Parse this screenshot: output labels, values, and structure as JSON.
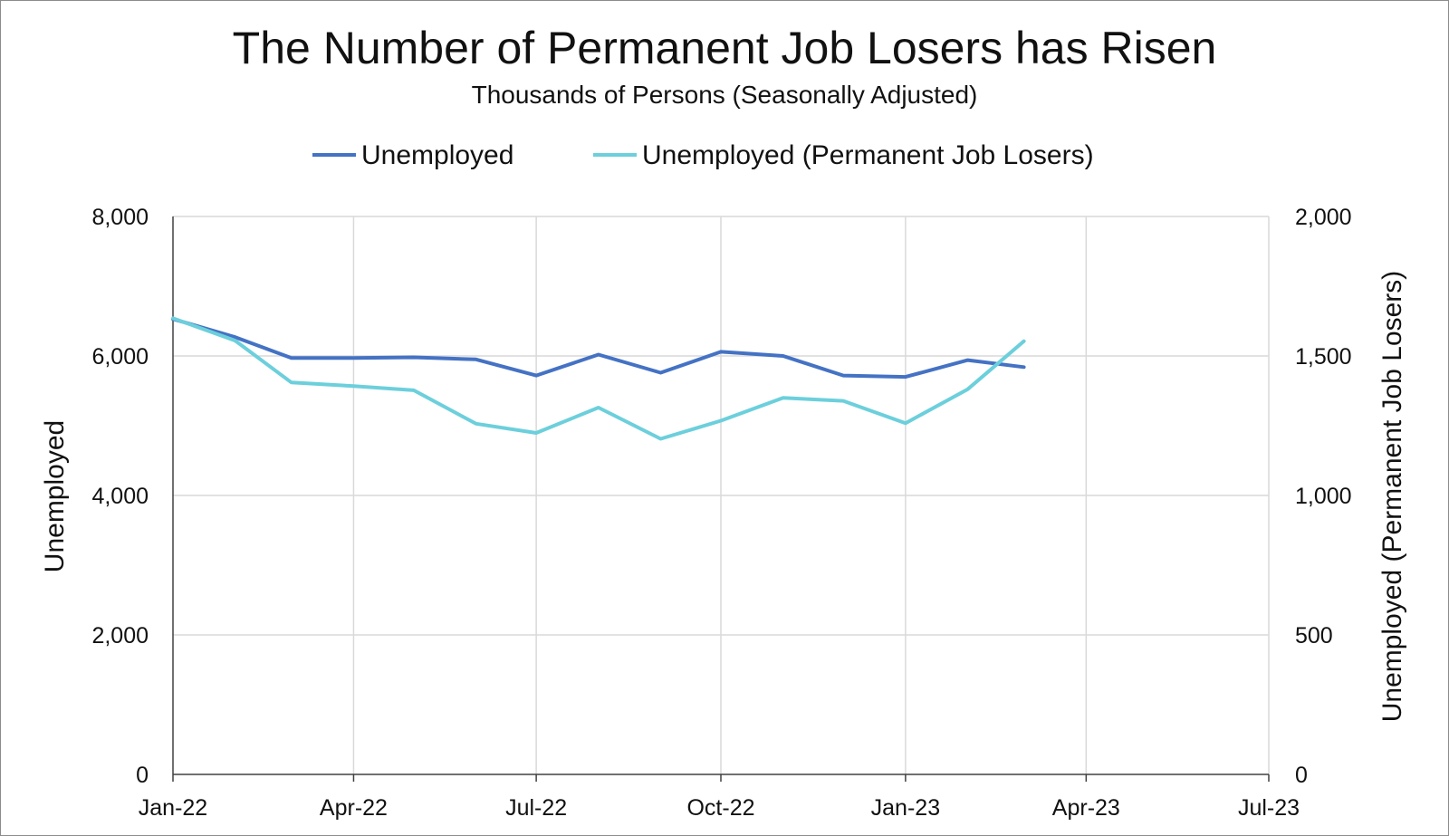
{
  "chart_data": {
    "type": "line",
    "title": "The Number of Permanent Job Losers has Risen",
    "subtitle": "Thousands of Persons (Seasonally Adjusted)",
    "ylabel_left": "Unemployed",
    "ylabel_right": "Unemployed (Permanent Job Losers)",
    "x_axis": {
      "min": "2022-01-01",
      "max": "2023-07-01",
      "ticks": [
        {
          "date": "2022-01-01",
          "label": "Jan-22"
        },
        {
          "date": "2022-04-01",
          "label": "Apr-22"
        },
        {
          "date": "2022-07-01",
          "label": "Jul-22"
        },
        {
          "date": "2022-10-01",
          "label": "Oct-22"
        },
        {
          "date": "2023-01-01",
          "label": "Jan-23"
        },
        {
          "date": "2023-04-01",
          "label": "Apr-23"
        },
        {
          "date": "2023-07-01",
          "label": "Jul-23"
        }
      ]
    },
    "y_left": {
      "min": 0,
      "max": 8000,
      "ticks": [
        {
          "value": 0,
          "label": "0"
        },
        {
          "value": 2000,
          "label": "2,000"
        },
        {
          "value": 4000,
          "label": "4,000"
        },
        {
          "value": 6000,
          "label": "6,000"
        },
        {
          "value": 8000,
          "label": "8,000"
        }
      ]
    },
    "y_right": {
      "min": 0,
      "max": 2000,
      "ticks": [
        {
          "value": 0,
          "label": "0"
        },
        {
          "value": 500,
          "label": "500"
        },
        {
          "value": 1000,
          "label": "1,000"
        },
        {
          "value": 1500,
          "label": "1,500"
        },
        {
          "value": 2000,
          "label": "2,000"
        }
      ]
    },
    "grid": true,
    "legend_position": "top",
    "x": [
      "2022-01-01",
      "2022-02-01",
      "2022-03-01",
      "2022-04-01",
      "2022-05-01",
      "2022-06-01",
      "2022-07-01",
      "2022-08-01",
      "2022-09-01",
      "2022-10-01",
      "2022-11-01",
      "2022-12-01",
      "2023-01-01",
      "2023-02-01",
      "2023-03-01"
    ],
    "series": [
      {
        "name": "Unemployed",
        "axis": "left",
        "color": "#4472c4",
        "values": [
          6530,
          6270,
          5970,
          5970,
          5980,
          5950,
          5720,
          6020,
          5760,
          6060,
          6000,
          5720,
          5700,
          5940,
          5840
        ]
      },
      {
        "name": "Unemployed (Permanent Job Losers)",
        "axis": "right",
        "color": "#6ccfdc",
        "values": [
          1635,
          1555,
          1405,
          1392,
          1377,
          1257,
          1224,
          1315,
          1203,
          1268,
          1350,
          1339,
          1259,
          1381,
          1553
        ]
      }
    ]
  }
}
